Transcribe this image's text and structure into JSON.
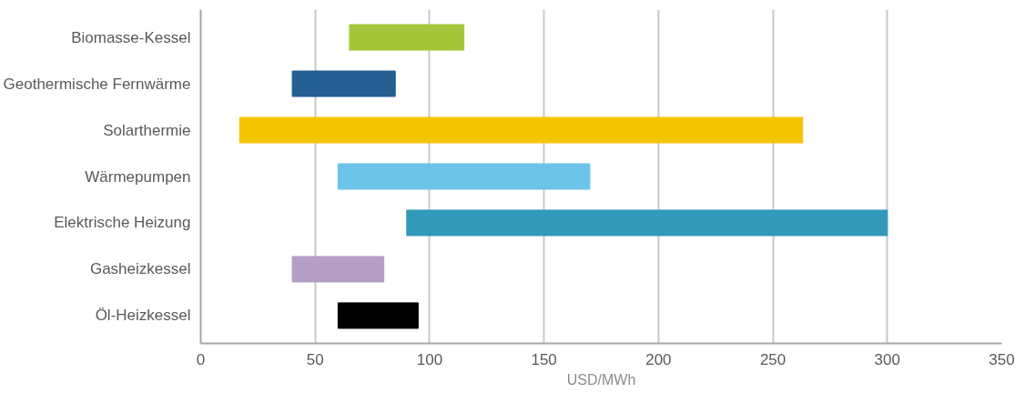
{
  "chart_data": {
    "type": "bar",
    "orientation": "horizontal",
    "xlabel": "USD/MWh",
    "categories": [
      "Biomasse-Kessel",
      "Geothermische Fernwärme",
      "Solarthermie",
      "Wärmepumpen",
      "Elektrische Heizung",
      "Gasheizkessel",
      "Öl-Heizkessel"
    ],
    "base": [
      65,
      40,
      17,
      60,
      90,
      40,
      60
    ],
    "values": [
      50,
      45,
      246,
      110,
      210,
      40,
      35
    ],
    "colors": [
      "#a4c639",
      "#255e91",
      "#f5c400",
      "#6cc3e8",
      "#3399bb",
      "#b59fc6",
      "#000000"
    ],
    "xlim": [
      0,
      350
    ],
    "xticks": [
      0,
      50,
      100,
      150,
      200,
      250,
      300,
      350
    ],
    "grid": "x"
  }
}
